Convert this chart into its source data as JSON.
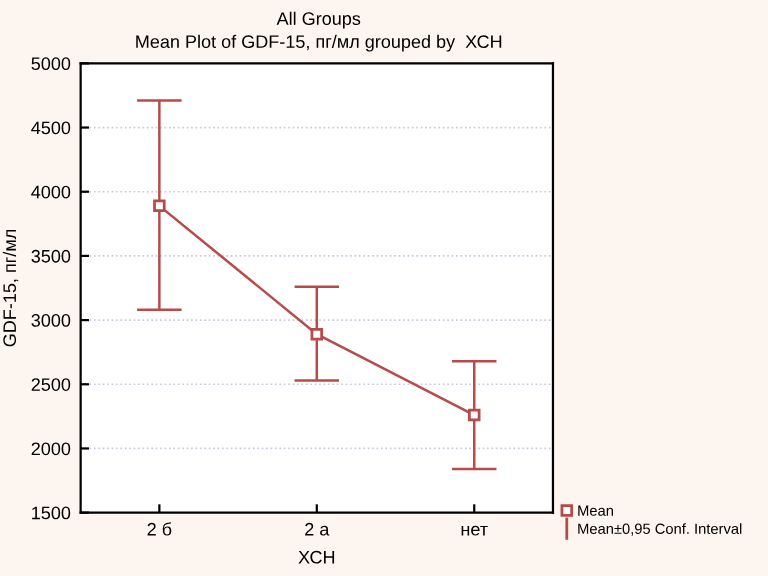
{
  "chart_data": {
    "type": "line",
    "title": "All Groups",
    "subtitle": "Mean Plot of GDF-15, пг/мл grouped by  ХСН",
    "xlabel": "ХСН",
    "ylabel": "GDF-15, пг/мл",
    "categories": [
      "2 б",
      "2 а",
      "нет"
    ],
    "series": [
      {
        "name": "Mean",
        "color": "#b84a4a",
        "values": [
          3890,
          2890,
          2260
        ],
        "errors": [
          [
            3080,
            4710
          ],
          [
            2530,
            3260
          ],
          [
            1840,
            2680
          ]
        ]
      }
    ],
    "annotations": [
      "Mean±0,95 Conf. Interval"
    ],
    "ylim": [
      1500,
      5000
    ],
    "yticks": [
      1500,
      2000,
      2500,
      3000,
      3500,
      4000,
      4500,
      5000
    ],
    "grid": "y",
    "legend": "bottom right",
    "marker": "square",
    "line_style": "solid"
  }
}
